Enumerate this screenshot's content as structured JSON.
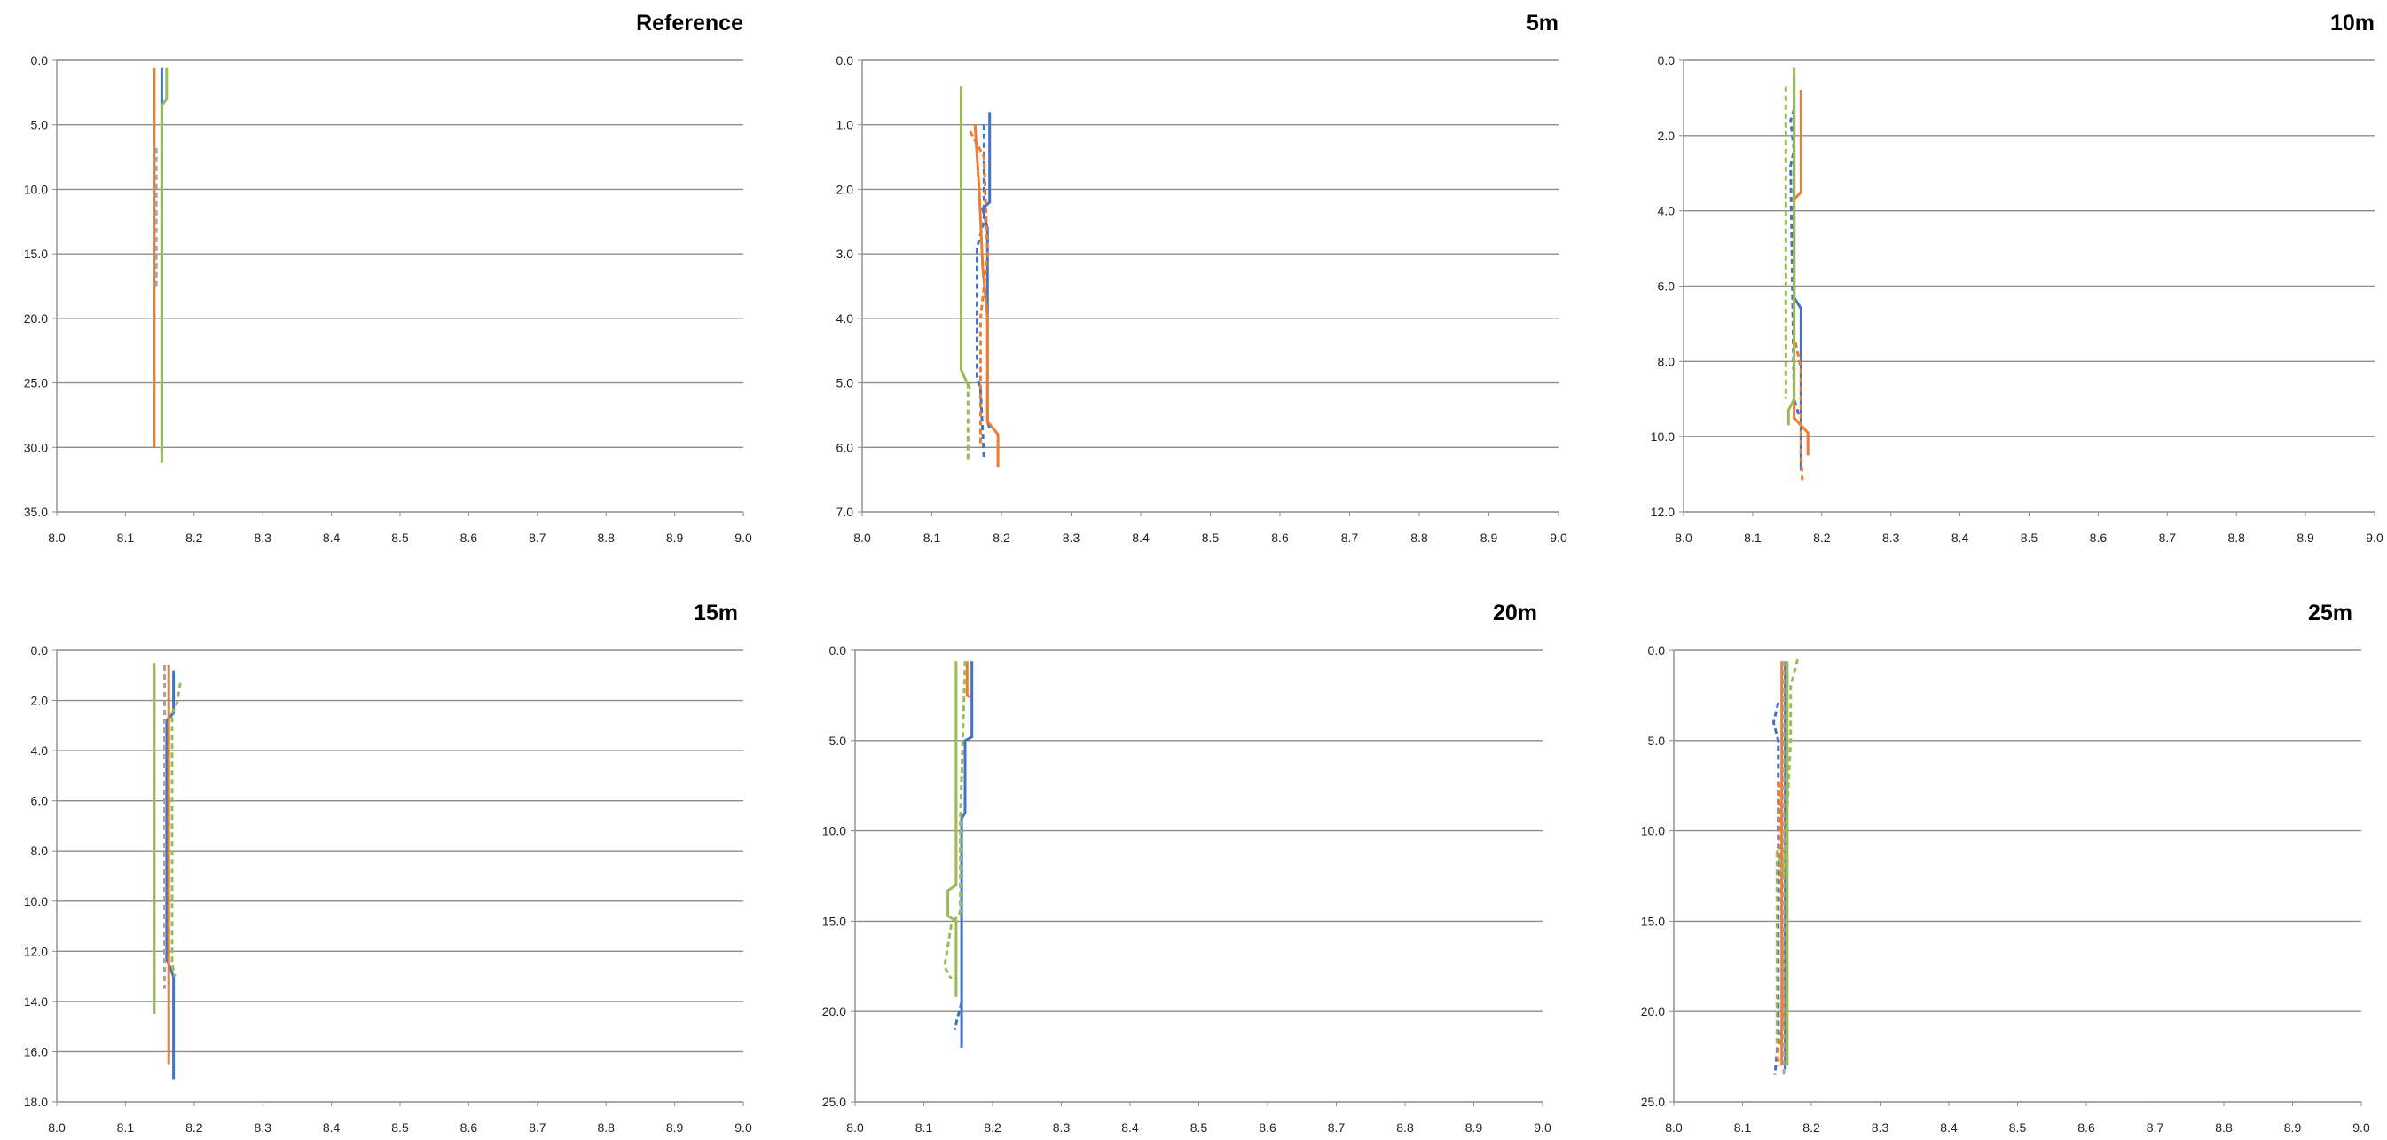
{
  "chart_data": [
    {
      "type": "line",
      "title": "Reference",
      "xlim": [
        8.0,
        9.0
      ],
      "ylim": [
        0,
        35
      ],
      "x_ticks": [
        "8.0",
        "8.1",
        "8.2",
        "8.3",
        "8.4",
        "8.5",
        "8.6",
        "8.7",
        "8.8",
        "8.9",
        "9.0"
      ],
      "y_ticks": [
        "0.0",
        "5.0",
        "10.0",
        "15.0",
        "20.0",
        "25.0",
        "30.0",
        "35.0"
      ],
      "y_inverted": true,
      "grid": "horizontal",
      "series": [
        {
          "color": "#4472C4",
          "dash": false,
          "points": [
            [
              8.153,
              0.6
            ],
            [
              8.153,
              30.5
            ]
          ]
        },
        {
          "color": "#ED7D31",
          "dash": false,
          "points": [
            [
              8.142,
              0.6
            ],
            [
              8.142,
              30.0
            ]
          ]
        },
        {
          "color": "#A5A5A5",
          "dash": true,
          "points": [
            [
              8.145,
              6.8
            ],
            [
              8.145,
              17.5
            ]
          ]
        },
        {
          "color": "#9BBB59",
          "dash": false,
          "points": [
            [
              8.16,
              0.6
            ],
            [
              8.16,
              3.0
            ],
            [
              8.153,
              3.5
            ],
            [
              8.153,
              31.2
            ]
          ]
        }
      ]
    },
    {
      "type": "line",
      "title": "5m",
      "xlim": [
        8.0,
        9.0
      ],
      "ylim": [
        0,
        7
      ],
      "x_ticks": [
        "8.0",
        "8.1",
        "8.2",
        "8.3",
        "8.4",
        "8.5",
        "8.6",
        "8.7",
        "8.8",
        "8.9",
        "9.0"
      ],
      "y_ticks": [
        "0.0",
        "1.0",
        "2.0",
        "3.0",
        "4.0",
        "5.0",
        "6.0",
        "7.0"
      ],
      "y_inverted": true,
      "grid": "horizontal",
      "series": [
        {
          "color": "#4472C4",
          "dash": false,
          "points": [
            [
              8.183,
              0.8
            ],
            [
              8.183,
              2.2
            ],
            [
              8.173,
              2.3
            ],
            [
              8.18,
              2.6
            ],
            [
              8.18,
              5.6
            ],
            [
              8.183,
              5.7
            ]
          ]
        },
        {
          "color": "#4472C4",
          "dash": true,
          "points": [
            [
              8.175,
              1.0
            ],
            [
              8.175,
              2.5
            ],
            [
              8.165,
              2.9
            ],
            [
              8.165,
              4.9
            ],
            [
              8.17,
              5.1
            ],
            [
              8.175,
              6.2
            ]
          ]
        },
        {
          "color": "#ED7D31",
          "dash": false,
          "points": [
            [
              8.162,
              1.0
            ],
            [
              8.168,
              2.0
            ],
            [
              8.173,
              3.2
            ],
            [
              8.18,
              4.0
            ],
            [
              8.18,
              5.6
            ],
            [
              8.195,
              5.8
            ],
            [
              8.195,
              6.3
            ]
          ]
        },
        {
          "color": "#ED7D31",
          "dash": true,
          "points": [
            [
              8.155,
              1.1
            ],
            [
              8.175,
              1.5
            ],
            [
              8.18,
              3.0
            ],
            [
              8.17,
              4.0
            ],
            [
              8.17,
              6.0
            ]
          ]
        },
        {
          "color": "#9BBB59",
          "dash": false,
          "points": [
            [
              8.142,
              0.4
            ],
            [
              8.142,
              4.8
            ],
            [
              8.155,
              5.1
            ]
          ]
        },
        {
          "color": "#9BBB59",
          "dash": true,
          "points": [
            [
              8.152,
              5.0
            ],
            [
              8.152,
              6.2
            ]
          ]
        }
      ]
    },
    {
      "type": "line",
      "title": "10m",
      "xlim": [
        8.0,
        9.0
      ],
      "ylim": [
        0,
        12
      ],
      "x_ticks": [
        "8.0",
        "8.1",
        "8.2",
        "8.3",
        "8.4",
        "8.5",
        "8.6",
        "8.7",
        "8.8",
        "8.9",
        "9.0"
      ],
      "y_ticks": [
        "0.0",
        "2.0",
        "4.0",
        "6.0",
        "8.0",
        "10.0",
        "12.0"
      ],
      "y_inverted": true,
      "grid": "horizontal",
      "series": [
        {
          "color": "#4472C4",
          "dash": false,
          "points": [
            [
              8.16,
              0.4
            ],
            [
              8.16,
              6.3
            ],
            [
              8.17,
              6.6
            ],
            [
              8.17,
              10.9
            ]
          ]
        },
        {
          "color": "#4472C4",
          "dash": true,
          "points": [
            [
              8.16,
              1.3
            ],
            [
              8.155,
              1.6
            ],
            [
              8.16,
              2.4
            ],
            [
              8.155,
              2.8
            ],
            [
              8.16,
              9.0
            ],
            [
              8.168,
              9.5
            ]
          ]
        },
        {
          "color": "#ED7D31",
          "dash": false,
          "points": [
            [
              8.17,
              0.8
            ],
            [
              8.17,
              3.5
            ],
            [
              8.16,
              3.7
            ],
            [
              8.16,
              9.5
            ],
            [
              8.18,
              9.9
            ],
            [
              8.18,
              10.5
            ]
          ]
        },
        {
          "color": "#ED7D31",
          "dash": true,
          "points": [
            [
              8.162,
              7.5
            ],
            [
              8.17,
              8.2
            ],
            [
              8.17,
              10.5
            ],
            [
              8.172,
              11.2
            ]
          ]
        },
        {
          "color": "#9BBB59",
          "dash": false,
          "points": [
            [
              8.16,
              0.2
            ],
            [
              8.16,
              9.0
            ],
            [
              8.152,
              9.3
            ],
            [
              8.152,
              9.7
            ]
          ]
        },
        {
          "color": "#9BBB59",
          "dash": true,
          "points": [
            [
              8.148,
              0.7
            ],
            [
              8.148,
              9.0
            ]
          ]
        }
      ]
    },
    {
      "type": "line",
      "title": "15m",
      "xlim": [
        8.0,
        9.0
      ],
      "ylim": [
        0,
        18
      ],
      "x_ticks": [
        "8.0",
        "8.1",
        "8.2",
        "8.3",
        "8.4",
        "8.5",
        "8.6",
        "8.7",
        "8.8",
        "8.9",
        "9.0"
      ],
      "y_ticks": [
        "0.0",
        "2.0",
        "4.0",
        "6.0",
        "8.0",
        "10.0",
        "12.0",
        "14.0",
        "16.0",
        "18.0"
      ],
      "y_inverted": true,
      "grid": "horizontal",
      "series": [
        {
          "color": "#4472C4",
          "dash": false,
          "points": [
            [
              8.17,
              0.8
            ],
            [
              8.17,
              2.5
            ],
            [
              8.16,
              2.8
            ],
            [
              8.16,
              12.3
            ],
            [
              8.17,
              13.0
            ],
            [
              8.17,
              17.1
            ]
          ]
        },
        {
          "color": "#ED7D31",
          "dash": false,
          "points": [
            [
              8.163,
              0.6
            ],
            [
              8.163,
              16.5
            ]
          ]
        },
        {
          "color": "#A5A5A5",
          "dash": true,
          "points": [
            [
              8.157,
              0.6
            ],
            [
              8.157,
              13.5
            ]
          ]
        },
        {
          "color": "#9BBB59",
          "dash": false,
          "points": [
            [
              8.142,
              0.5
            ],
            [
              8.142,
              14.5
            ]
          ]
        },
        {
          "color": "#9BBB59",
          "dash": true,
          "points": [
            [
              8.18,
              1.3
            ],
            [
              8.175,
              2.1
            ],
            [
              8.168,
              2.5
            ],
            [
              8.168,
              12.5
            ],
            [
              8.172,
              13.0
            ]
          ]
        }
      ]
    },
    {
      "type": "line",
      "title": "20m",
      "xlim": [
        8.0,
        10.0
      ],
      "ylim": [
        0,
        25
      ],
      "x_ticks": [
        "8.0",
        "8.1",
        "8.2",
        "8.3",
        "8.4",
        "8.5",
        "8.6",
        "8.7",
        "8.8",
        "8.9",
        "9.0"
      ],
      "y_ticks": [
        "0.0",
        "5.0",
        "10.0",
        "15.0",
        "20.0",
        "25.0"
      ],
      "y_inverted": true,
      "grid": "horizontal",
      "series": [
        {
          "color": "#4472C4",
          "dash": false,
          "points": [
            [
              8.17,
              0.6
            ],
            [
              8.17,
              4.8
            ],
            [
              8.16,
              5.0
            ],
            [
              8.16,
              9.0
            ],
            [
              8.155,
              9.3
            ],
            [
              8.155,
              22.0
            ]
          ]
        },
        {
          "color": "#4472C4",
          "dash": true,
          "points": [
            [
              8.155,
              19.5
            ],
            [
              8.148,
              20.5
            ],
            [
              8.145,
              21.0
            ]
          ]
        },
        {
          "color": "#ED7D31",
          "dash": false,
          "points": [
            [
              8.163,
              0.6
            ],
            [
              8.163,
              2.5
            ],
            [
              8.168,
              2.6
            ]
          ]
        },
        {
          "color": "#9BBB59",
          "dash": false,
          "points": [
            [
              8.147,
              0.6
            ],
            [
              8.147,
              13.0
            ],
            [
              8.135,
              13.3
            ],
            [
              8.135,
              14.7
            ],
            [
              8.147,
              15.0
            ],
            [
              8.147,
              19.2
            ]
          ]
        },
        {
          "color": "#9BBB59",
          "dash": true,
          "points": [
            [
              8.16,
              0.6
            ],
            [
              8.153,
              9.5
            ],
            [
              8.153,
              14.5
            ],
            [
              8.14,
              15.2
            ],
            [
              8.13,
              17.5
            ],
            [
              8.14,
              18.2
            ]
          ]
        }
      ]
    },
    {
      "type": "line",
      "title": "25m",
      "xlim": [
        8.0,
        9.0
      ],
      "ylim": [
        0,
        25
      ],
      "x_ticks": [
        "8.0",
        "8.1",
        "8.2",
        "8.3",
        "8.4",
        "8.5",
        "8.6",
        "8.7",
        "8.8",
        "8.9",
        "9.0"
      ],
      "y_ticks": [
        "0.0",
        "5.0",
        "10.0",
        "15.0",
        "20.0",
        "25.0"
      ],
      "y_inverted": true,
      "grid": "horizontal",
      "series": [
        {
          "color": "#4472C4",
          "dash": false,
          "points": [
            [
              8.162,
              0.6
            ],
            [
              8.162,
              23.2
            ]
          ]
        },
        {
          "color": "#4472C4",
          "dash": true,
          "points": [
            [
              8.152,
              2.9
            ],
            [
              8.145,
              4.0
            ],
            [
              8.152,
              5.0
            ],
            [
              8.152,
              21.5
            ],
            [
              8.147,
              23.5
            ]
          ]
        },
        {
          "color": "#ED7D31",
          "dash": false,
          "points": [
            [
              8.157,
              0.6
            ],
            [
              8.157,
              23.0
            ]
          ]
        },
        {
          "color": "#ED7D31",
          "dash": true,
          "points": [
            [
              8.153,
              7.3
            ],
            [
              8.153,
              8.2
            ],
            [
              8.16,
              20.3
            ],
            [
              8.15,
              22.5
            ],
            [
              8.155,
              23.0
            ]
          ]
        },
        {
          "color": "#A5A5A5",
          "dash": true,
          "points": [
            [
              8.16,
              0.6
            ],
            [
              8.16,
              23.5
            ]
          ]
        },
        {
          "color": "#9BBB59",
          "dash": false,
          "points": [
            [
              8.165,
              0.6
            ],
            [
              8.165,
              23.0
            ]
          ]
        },
        {
          "color": "#9BBB59",
          "dash": true,
          "points": [
            [
              8.18,
              0.5
            ],
            [
              8.17,
              2.0
            ],
            [
              8.17,
              5.0
            ],
            [
              8.16,
              12.5
            ],
            [
              8.15,
              11.0
            ],
            [
              8.15,
              22.0
            ]
          ]
        }
      ]
    }
  ]
}
